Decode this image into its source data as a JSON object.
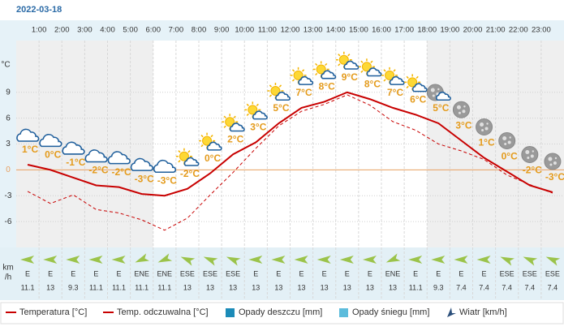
{
  "chart_data": {
    "type": "line",
    "title": "2022-03-18",
    "x_labels": [
      "1:00",
      "2:00",
      "3:00",
      "4:00",
      "5:00",
      "6:00",
      "7:00",
      "8:00",
      "9:00",
      "10:00",
      "11:00",
      "12:00",
      "13:00",
      "14:00",
      "15:00",
      "16:00",
      "17:00",
      "18:00",
      "19:00",
      "20:00",
      "21:00",
      "22:00",
      "23:00"
    ],
    "y_label": "°C",
    "ylim": [
      -9,
      15
    ],
    "yticks": [
      9,
      6,
      3,
      0,
      -3,
      -6
    ],
    "grid": true,
    "zero_line_color": "#e8a060",
    "series": [
      {
        "name": "Temperatura [°C]",
        "color": "#c80000",
        "values": [
          0.6,
          0,
          -0.9,
          -1.8,
          -2,
          -2.8,
          -3,
          -2.2,
          -0.4,
          1.8,
          3.2,
          5.4,
          7.2,
          7.9,
          9,
          8.2,
          7.2,
          6.4,
          5.4,
          3.4,
          1.4,
          -0.2,
          -1.8,
          -2.6
        ],
        "value_labels": [
          "1°C",
          "0°C",
          "-1°C",
          "-2°C",
          "-2°C",
          "-3°C",
          "-3°C",
          "-2°C",
          "0°C",
          "2°C",
          "3°C",
          "5°C",
          "7°C",
          "8°C",
          "9°C",
          "8°C",
          "7°C",
          "6°C",
          "5°C",
          "3°C",
          "1°C",
          "0°C",
          "-2°C",
          "-3°C"
        ]
      },
      {
        "name": "Temp. odczuwalna [°C]",
        "color": "#c80000",
        "dashed": true,
        "values": [
          -2.5,
          -3.9,
          -2.9,
          -4.6,
          -5,
          -5.8,
          -7,
          -5.6,
          -2.9,
          -0.3,
          2.5,
          5.1,
          6.8,
          7.6,
          8.7,
          7.5,
          5.6,
          4.6,
          3,
          2.2,
          1.2,
          -0.6,
          -1.7,
          -2.7
        ]
      }
    ],
    "extra_legend": [
      {
        "name": "Opady deszczu [mm]",
        "color": "#1b8bb8"
      },
      {
        "name": "Opady śniegu [mm]",
        "color": "#5cbcdc"
      }
    ],
    "wind": {
      "name": "Wiatr [km/h]",
      "axis_label": [
        "km",
        "/h"
      ],
      "color": "#9bc34a",
      "directions": [
        "E",
        "E",
        "E",
        "E",
        "E",
        "ENE",
        "ENE",
        "ESE",
        "ESE",
        "ESE",
        "E",
        "E",
        "E",
        "E",
        "E",
        "E",
        "ENE",
        "E",
        "E",
        "E",
        "E",
        "ESE",
        "ESE",
        "ESE"
      ],
      "speeds": [
        11.1,
        13,
        9.3,
        11.1,
        11.1,
        11.1,
        11.1,
        13,
        13,
        13,
        13,
        13,
        13,
        13,
        13,
        13,
        13,
        11.1,
        9.3,
        7.4,
        7.4,
        7.4,
        7.4,
        7.4
      ]
    }
  }
}
